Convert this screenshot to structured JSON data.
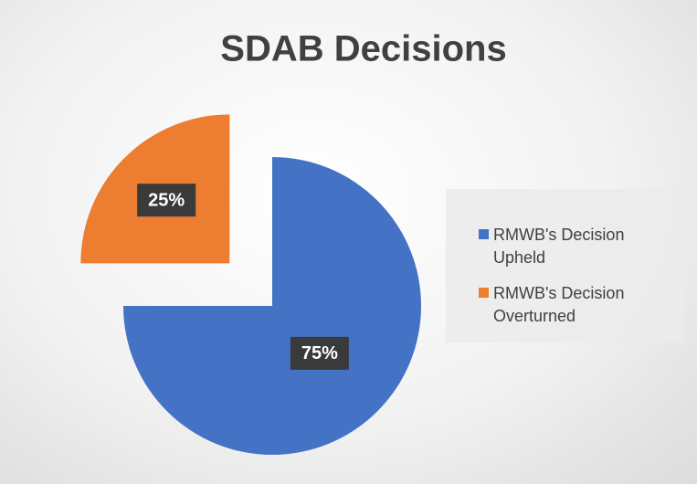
{
  "chart_data": {
    "type": "pie",
    "title": "SDAB Decisions",
    "categories": [
      "RMWB's Decision Upheld",
      "RMWB's Decision Overturned"
    ],
    "values": [
      75,
      25
    ],
    "value_labels": [
      "75%",
      "25%"
    ],
    "colors": [
      "#4472c4",
      "#ed7d31"
    ],
    "legend": "right"
  }
}
